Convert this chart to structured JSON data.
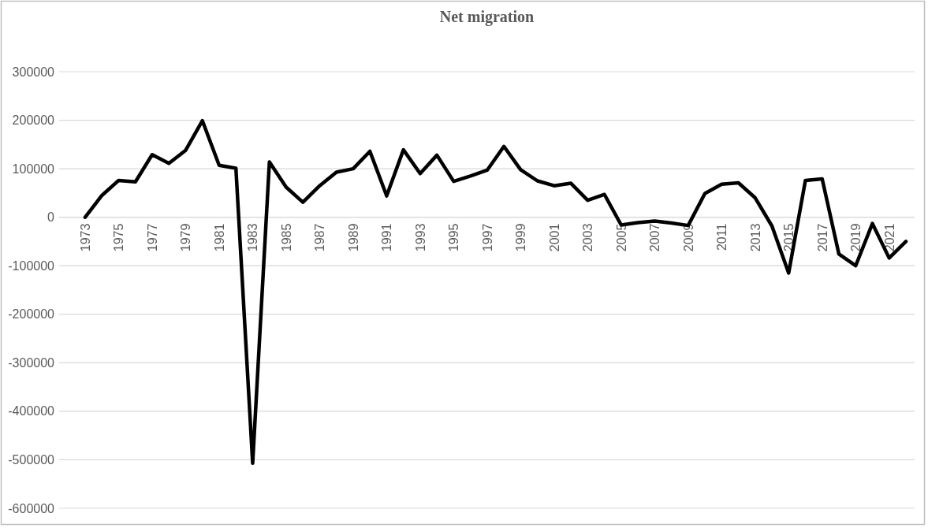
{
  "chart_data": {
    "type": "line",
    "title": "Net migration",
    "categories": [
      "1973",
      null,
      "1975",
      null,
      "1977",
      null,
      "1979",
      null,
      "1981",
      null,
      "1983",
      null,
      "1985",
      null,
      "1987",
      null,
      "1989",
      null,
      "1991",
      null,
      "1993",
      null,
      "1995",
      null,
      "1997",
      null,
      "1999",
      null,
      "2001",
      null,
      "2003",
      null,
      "2005",
      null,
      "2007",
      null,
      "2009",
      null,
      "2011",
      null,
      "2013",
      null,
      "2015",
      null,
      "2017",
      null,
      "2019",
      null,
      "2021",
      null
    ],
    "series": [
      {
        "color": "#000000",
        "values": [
          0,
          45000,
          76000,
          73000,
          129000,
          111000,
          138000,
          199000,
          107000,
          101000,
          -507000,
          114000,
          62000,
          31000,
          65000,
          93000,
          100000,
          136000,
          44000,
          139000,
          90000,
          128000,
          74000,
          85000,
          97000,
          146000,
          98000,
          75000,
          65000,
          70000,
          35000,
          47000,
          -16000,
          -11000,
          -8000,
          -12000,
          -17000,
          49000,
          68000,
          71000,
          40000,
          -18000,
          -115000,
          76000,
          79000,
          -76000,
          -100000,
          -13000,
          -84000,
          -50000
        ]
      }
    ],
    "ylim": [
      -600000,
      300000
    ],
    "yticks": [
      -600000,
      -500000,
      -400000,
      -300000,
      -200000,
      -100000,
      0,
      100000,
      200000,
      300000
    ],
    "grid": "y",
    "marker": "none",
    "line_style": "solid"
  }
}
